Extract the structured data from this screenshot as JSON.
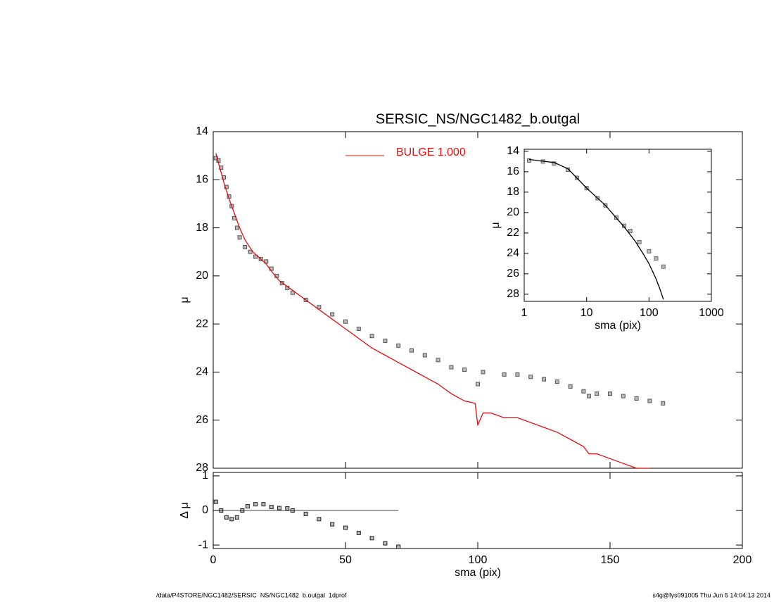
{
  "chart_data": [
    {
      "type": "line",
      "title": "SERSIC_NS/NGC1482_b.outgal",
      "ylabel": "μ",
      "xlim": [
        0,
        200
      ],
      "xticks": [
        0,
        50,
        100,
        150,
        200
      ],
      "ylim": [
        28,
        14
      ],
      "yticks": [
        14,
        16,
        18,
        20,
        22,
        24,
        26,
        28
      ],
      "series": [
        {
          "style": "markers",
          "color": "#555555",
          "x": [
            1,
            2,
            3,
            4,
            5,
            6,
            7,
            8,
            9,
            10,
            12,
            14,
            16,
            18,
            20,
            22,
            24,
            26,
            28,
            30,
            35,
            40,
            45,
            50,
            55,
            60,
            65,
            70,
            75,
            80,
            85,
            90,
            95,
            100,
            102,
            110,
            115,
            120,
            125,
            130,
            135,
            140,
            142,
            145,
            150,
            155,
            160,
            165,
            170
          ],
          "values": [
            15.1,
            15.2,
            15.5,
            15.9,
            16.3,
            16.7,
            17.1,
            17.6,
            18.0,
            18.4,
            18.8,
            19.0,
            19.2,
            19.3,
            19.4,
            19.7,
            20.0,
            20.3,
            20.5,
            20.7,
            21.0,
            21.3,
            21.6,
            21.9,
            22.2,
            22.5,
            22.7,
            22.9,
            23.1,
            23.3,
            23.5,
            23.8,
            23.9,
            24.5,
            24.0,
            24.1,
            24.1,
            24.2,
            24.3,
            24.4,
            24.6,
            24.8,
            25.0,
            24.9,
            24.9,
            25.0,
            25.1,
            25.2,
            25.3
          ]
        },
        {
          "style": "line",
          "name": "BULGE  1.000",
          "color": "#e01010",
          "x": [
            1,
            2,
            4,
            6,
            8,
            10,
            12,
            15,
            18,
            20,
            22,
            25,
            30,
            35,
            40,
            45,
            50,
            55,
            60,
            65,
            70,
            75,
            80,
            85,
            90,
            95,
            99,
            100,
            102,
            105,
            110,
            115,
            120,
            125,
            130,
            135,
            140,
            142,
            145,
            150,
            155,
            160,
            165
          ],
          "values": [
            14.9,
            15.3,
            16.1,
            16.8,
            17.4,
            18.0,
            18.5,
            19.0,
            19.3,
            19.5,
            19.8,
            20.2,
            20.6,
            21.0,
            21.4,
            21.8,
            22.2,
            22.6,
            23.0,
            23.3,
            23.6,
            23.9,
            24.2,
            24.5,
            24.9,
            25.2,
            25.3,
            26.2,
            25.7,
            25.7,
            25.9,
            25.9,
            26.1,
            26.3,
            26.5,
            26.8,
            27.1,
            27.4,
            27.4,
            27.6,
            27.8,
            28.0,
            28.0
          ]
        }
      ]
    },
    {
      "type": "line",
      "ylabel": "Δ μ",
      "xlabel": "sma (pix)",
      "xlim": [
        0,
        200
      ],
      "xticks": [
        0,
        50,
        100,
        150,
        200
      ],
      "ylim": [
        -1.1,
        1.1
      ],
      "yticks": [
        -1,
        0,
        1
      ],
      "series": [
        {
          "style": "markers",
          "color": "#222222",
          "x": [
            1,
            3,
            5,
            7,
            9,
            11,
            13,
            16,
            19,
            22,
            25,
            28,
            30,
            35,
            40,
            45,
            50,
            55,
            60,
            65,
            70
          ],
          "values": [
            0.25,
            0.0,
            -0.2,
            -0.25,
            -0.2,
            0.0,
            0.12,
            0.18,
            0.18,
            0.1,
            0.07,
            0.06,
            0.0,
            -0.1,
            -0.25,
            -0.4,
            -0.5,
            -0.65,
            -0.8,
            -0.95,
            -1.05
          ]
        }
      ]
    },
    {
      "type": "line",
      "log_x": true,
      "ylabel": "μ",
      "xlabel": "sma (pix)",
      "xlim": [
        1,
        1000
      ],
      "xticks": [
        1,
        10,
        100,
        1000
      ],
      "ylim": [
        28.7,
        13.8
      ],
      "yticks": [
        14,
        16,
        18,
        20,
        22,
        24,
        26,
        28
      ],
      "series": [
        {
          "style": "markers",
          "color": "#666666",
          "x": [
            1.2,
            2,
            3,
            5,
            7,
            10,
            15,
            20,
            30,
            40,
            50,
            70,
            100,
            130,
            170
          ],
          "values": [
            14.9,
            15.0,
            15.2,
            15.8,
            16.6,
            17.6,
            18.6,
            19.3,
            20.5,
            21.3,
            21.8,
            22.9,
            23.8,
            24.5,
            25.3
          ]
        },
        {
          "style": "line",
          "color": "#000000",
          "x": [
            1.2,
            3,
            5,
            10,
            20,
            40,
            60,
            80,
            100,
            130,
            150,
            170
          ],
          "values": [
            14.8,
            15.1,
            15.7,
            17.6,
            19.3,
            21.4,
            22.8,
            24.0,
            25.0,
            26.5,
            27.5,
            28.5
          ]
        }
      ]
    }
  ],
  "footer": {
    "left": "/data/P4STORE/NGC1482/SERSIC_NS/NGC1482_b.outgal_1dprof",
    "right": "s4g@fys091005  Thu Jun  5 14:04:13 2014"
  }
}
